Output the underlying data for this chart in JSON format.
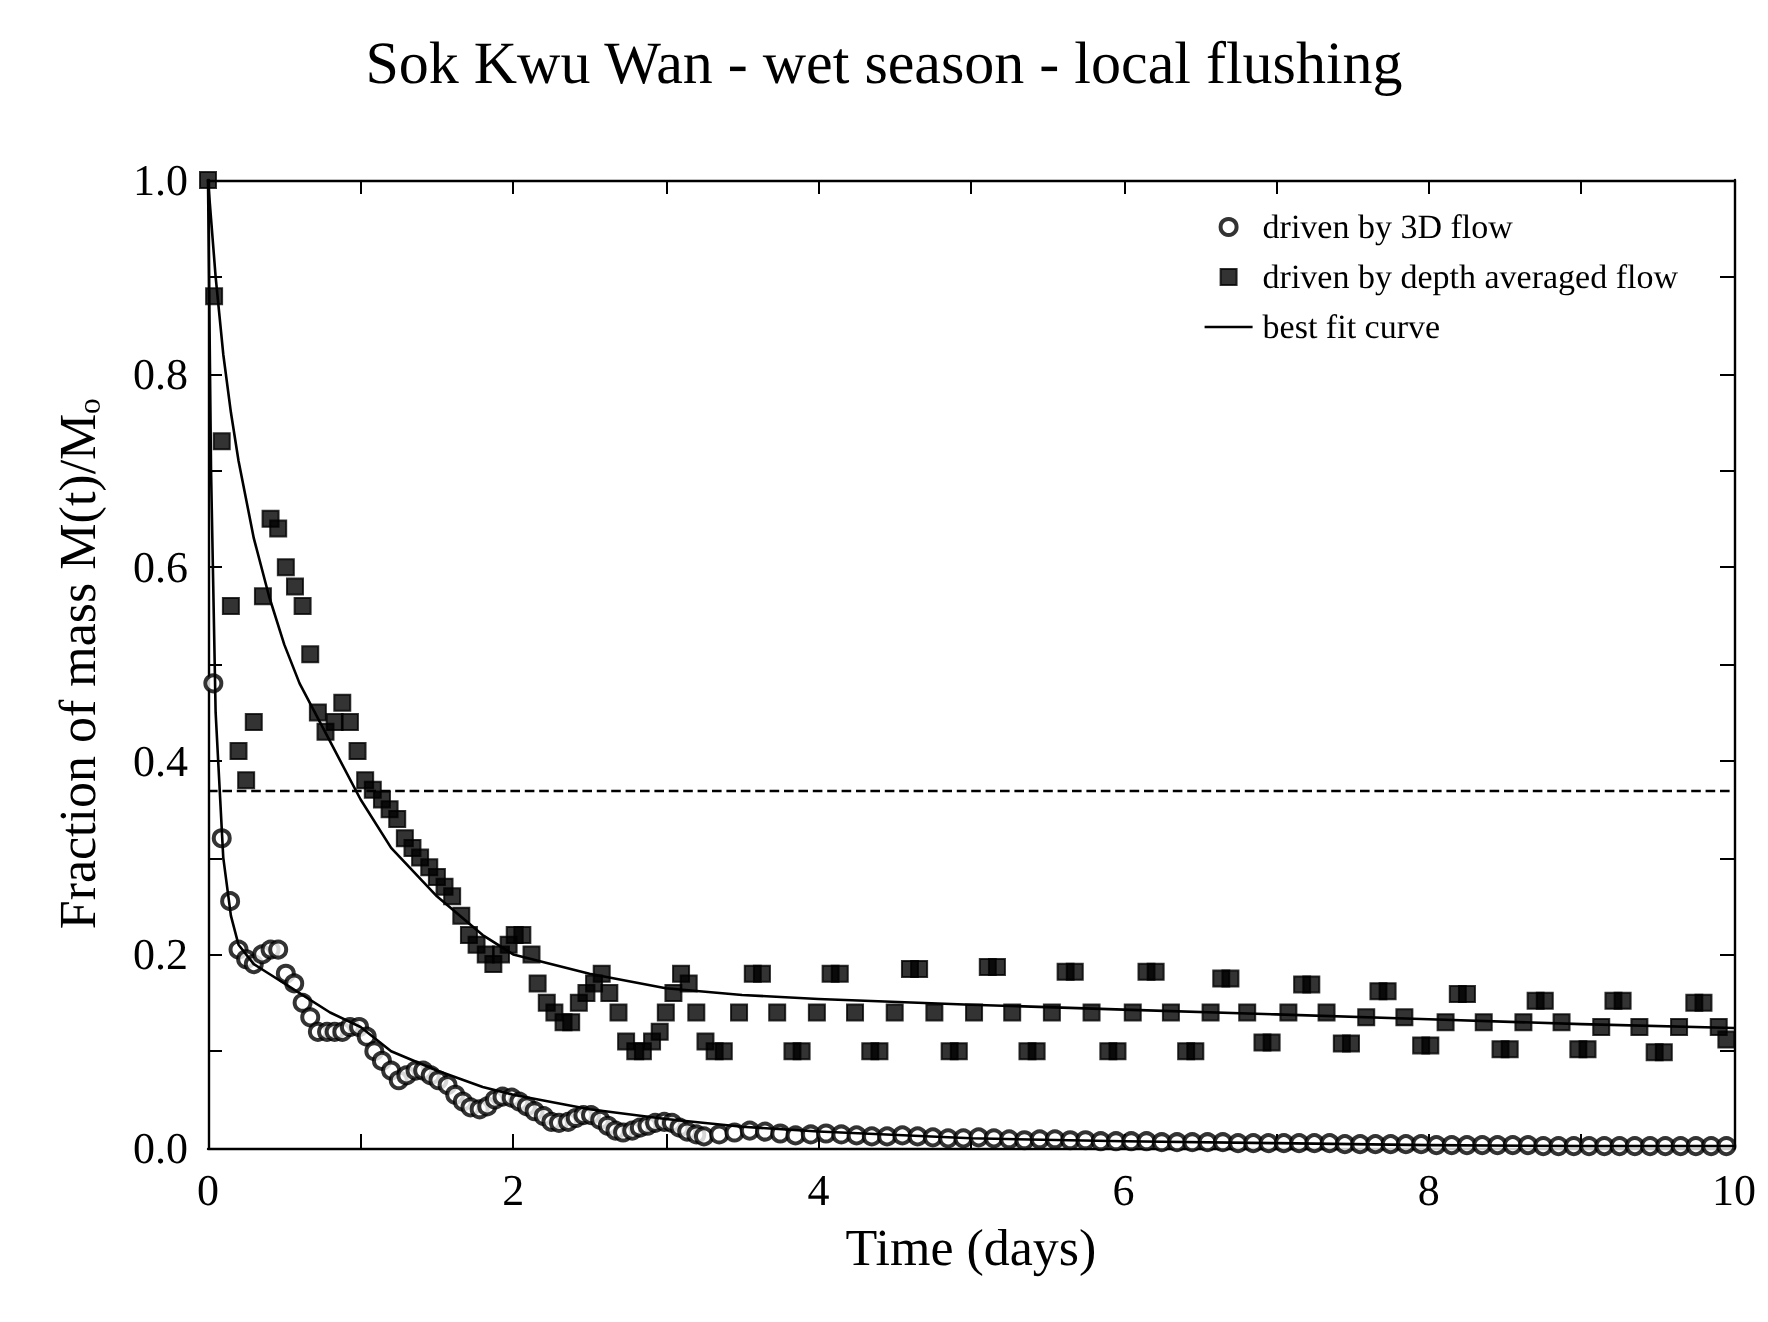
{
  "chart_data": {
    "type": "scatter",
    "title": "Sok Kwu Wan - wet season - local flushing",
    "xlabel": "Time (days)",
    "ylabel": "Fraction of mass M(t)/Mₒ",
    "xlim": [
      0,
      10
    ],
    "xticks": [
      0,
      {
        "value": 1,
        "label": null
      },
      2,
      {
        "value": 3,
        "label": null
      },
      4,
      {
        "value": 5,
        "label": null
      },
      6,
      {
        "value": 7,
        "label": null
      },
      8,
      {
        "value": 9,
        "label": null
      },
      10
    ],
    "ylim": [
      0,
      1
    ],
    "yticks": [
      {
        "value": 0,
        "label": "0.0"
      },
      {
        "value": 0.1,
        "label": null
      },
      {
        "value": 0.2,
        "label": "0.2"
      },
      {
        "value": 0.3,
        "label": null
      },
      {
        "value": 0.4,
        "label": "0.4"
      },
      {
        "value": 0.5,
        "label": null
      },
      {
        "value": 0.6,
        "label": "0.6"
      },
      {
        "value": 0.7,
        "label": null
      },
      {
        "value": 0.8,
        "label": "0.8"
      },
      {
        "value": 0.9,
        "label": null
      },
      {
        "value": 1,
        "label": "1.0"
      }
    ],
    "grid": false,
    "legend": "top right",
    "ref_lines": [
      {
        "axis": "y",
        "value": 0.368,
        "line_style": "dashed",
        "color": "#000000"
      }
    ],
    "series": [
      {
        "name": "driven by 3D flow",
        "marker": "circle",
        "color": "#000000",
        "x": [
          0.035,
          0.09,
          0.145,
          0.2,
          0.25,
          0.3,
          0.355,
          0.41,
          0.46,
          0.51,
          0.565,
          0.62,
          0.67,
          0.72,
          0.78,
          0.83,
          0.88,
          0.93,
          0.99,
          1.04,
          1.09,
          1.14,
          1.2,
          1.25,
          1.3,
          1.36,
          1.41,
          1.46,
          1.51,
          1.57,
          1.62,
          1.67,
          1.72,
          1.78,
          1.83,
          1.88,
          1.93,
          1.99,
          2.04,
          2.09,
          2.14,
          2.2,
          2.25,
          2.3,
          2.36,
          2.41,
          2.46,
          2.51,
          2.57,
          2.62,
          2.67,
          2.72,
          2.78,
          2.83,
          2.88,
          2.93,
          2.99,
          3.04,
          3.09,
          3.14,
          3.2,
          3.25,
          3.35,
          3.45,
          3.55,
          3.65,
          3.75,
          3.85,
          3.95,
          4.05,
          4.15,
          4.25,
          4.35,
          4.45,
          4.55,
          4.65,
          4.75,
          4.85,
          4.95,
          5.05,
          5.15,
          5.25,
          5.35,
          5.45,
          5.55,
          5.65,
          5.75,
          5.85,
          5.95,
          6.05,
          6.15,
          6.25,
          6.35,
          6.45,
          6.55,
          6.65,
          6.75,
          6.85,
          6.95,
          7.05,
          7.15,
          7.25,
          7.35,
          7.45,
          7.55,
          7.65,
          7.75,
          7.85,
          7.95,
          8.05,
          8.15,
          8.25,
          8.35,
          8.45,
          8.55,
          8.65,
          8.75,
          8.85,
          8.95,
          9.05,
          9.15,
          9.25,
          9.35,
          9.45,
          9.55,
          9.65,
          9.75,
          9.85,
          9.95
        ],
        "values": [
          0.48,
          0.32,
          0.255,
          0.205,
          0.195,
          0.19,
          0.2,
          0.205,
          0.205,
          0.18,
          0.17,
          0.15,
          0.135,
          0.12,
          0.12,
          0.12,
          0.12,
          0.125,
          0.125,
          0.115,
          0.1,
          0.09,
          0.08,
          0.07,
          0.075,
          0.08,
          0.08,
          0.075,
          0.07,
          0.065,
          0.055,
          0.048,
          0.042,
          0.04,
          0.043,
          0.05,
          0.053,
          0.052,
          0.048,
          0.043,
          0.038,
          0.033,
          0.027,
          0.026,
          0.027,
          0.031,
          0.034,
          0.034,
          0.029,
          0.023,
          0.018,
          0.016,
          0.018,
          0.021,
          0.023,
          0.026,
          0.027,
          0.026,
          0.021,
          0.017,
          0.014,
          0.012,
          0.014,
          0.016,
          0.018,
          0.017,
          0.015,
          0.013,
          0.014,
          0.015,
          0.014,
          0.013,
          0.012,
          0.012,
          0.013,
          0.012,
          0.011,
          0.01,
          0.01,
          0.011,
          0.01,
          0.009,
          0.008,
          0.009,
          0.009,
          0.008,
          0.008,
          0.007,
          0.007,
          0.007,
          0.007,
          0.006,
          0.006,
          0.006,
          0.006,
          0.006,
          0.005,
          0.005,
          0.005,
          0.005,
          0.005,
          0.005,
          0.005,
          0.004,
          0.004,
          0.004,
          0.004,
          0.004,
          0.004,
          0.003,
          0.003,
          0.003,
          0.003,
          0.003,
          0.003,
          0.003,
          0.002,
          0.002,
          0.002,
          0.002,
          0.002,
          0.002,
          0.002,
          0.002,
          0.002,
          0.002,
          0.002,
          0.002,
          0.002
        ]
      },
      {
        "name": "driven by depth averaged flow",
        "marker": "square",
        "color": "#000000",
        "x": [
          0,
          0.04,
          0.09,
          0.15,
          0.2,
          0.25,
          0.3,
          0.36,
          0.41,
          0.46,
          0.51,
          0.57,
          0.62,
          0.67,
          0.72,
          0.77,
          0.83,
          0.88,
          0.93,
          0.98,
          1.03,
          1.08,
          1.14,
          1.19,
          1.24,
          1.29,
          1.34,
          1.39,
          1.45,
          1.5,
          1.55,
          1.6,
          1.66,
          1.71,
          1.76,
          1.82,
          1.87,
          1.92,
          1.97,
          2.01,
          2.06,
          2.12,
          2.16,
          2.22,
          2.27,
          2.33,
          2.38,
          2.43,
          2.48,
          2.53,
          2.58,
          2.63,
          2.69,
          2.74,
          2.8,
          2.85,
          2.91,
          2.96,
          3.0,
          3.05,
          3.1,
          3.15,
          3.2,
          3.26,
          3.32,
          3.38,
          3.48,
          3.57,
          3.63,
          3.73,
          3.83,
          3.89,
          3.99,
          4.08,
          4.14,
          4.24,
          4.34,
          4.4,
          4.5,
          4.6,
          4.66,
          4.76,
          4.86,
          4.92,
          5.02,
          5.11,
          5.17,
          5.27,
          5.37,
          5.43,
          5.53,
          5.62,
          5.68,
          5.79,
          5.9,
          5.96,
          6.06,
          6.15,
          6.21,
          6.31,
          6.41,
          6.47,
          6.57,
          6.64,
          6.7,
          6.81,
          6.91,
          6.97,
          7.08,
          7.17,
          7.23,
          7.33,
          7.43,
          7.49,
          7.59,
          7.67,
          7.73,
          7.84,
          7.95,
          8.01,
          8.11,
          8.19,
          8.25,
          8.36,
          8.47,
          8.53,
          8.62,
          8.7,
          8.76,
          8.87,
          8.98,
          9.04,
          9.13,
          9.21,
          9.27,
          9.38,
          9.48,
          9.54,
          9.64,
          9.74,
          9.8,
          9.9,
          9.95
        ],
        "values": [
          1.0,
          0.88,
          0.73,
          0.56,
          0.41,
          0.38,
          0.44,
          0.57,
          0.65,
          0.64,
          0.6,
          0.58,
          0.56,
          0.51,
          0.45,
          0.43,
          0.44,
          0.46,
          0.44,
          0.41,
          0.38,
          0.37,
          0.36,
          0.35,
          0.34,
          0.32,
          0.31,
          0.3,
          0.29,
          0.28,
          0.27,
          0.26,
          0.24,
          0.22,
          0.21,
          0.2,
          0.19,
          0.2,
          0.21,
          0.22,
          0.22,
          0.2,
          0.17,
          0.15,
          0.14,
          0.13,
          0.13,
          0.15,
          0.16,
          0.17,
          0.18,
          0.16,
          0.14,
          0.11,
          0.1,
          0.1,
          0.11,
          0.12,
          0.14,
          0.16,
          0.18,
          0.17,
          0.14,
          0.11,
          0.1,
          0.1,
          0.14,
          0.18,
          0.18,
          0.14,
          0.1,
          0.1,
          0.14,
          0.18,
          0.18,
          0.14,
          0.1,
          0.1,
          0.14,
          0.185,
          0.185,
          0.14,
          0.1,
          0.1,
          0.14,
          0.187,
          0.187,
          0.14,
          0.1,
          0.1,
          0.14,
          0.182,
          0.182,
          0.14,
          0.1,
          0.1,
          0.14,
          0.182,
          0.182,
          0.14,
          0.1,
          0.1,
          0.14,
          0.175,
          0.175,
          0.14,
          0.109,
          0.109,
          0.14,
          0.169,
          0.169,
          0.14,
          0.108,
          0.108,
          0.135,
          0.162,
          0.162,
          0.135,
          0.106,
          0.106,
          0.13,
          0.159,
          0.159,
          0.13,
          0.102,
          0.102,
          0.13,
          0.152,
          0.152,
          0.13,
          0.102,
          0.102,
          0.125,
          0.152,
          0.152,
          0.125,
          0.099,
          0.099,
          0.125,
          0.15,
          0.15,
          0.125,
          0.112
        ]
      },
      {
        "name": "best fit curve",
        "type": "line",
        "marker": "none",
        "color": "#000000",
        "x": [
          0,
          0.05,
          0.1,
          0.15,
          0.2,
          0.3,
          0.4,
          0.5,
          0.6,
          0.8,
          1,
          1.2,
          1.5,
          1.8,
          2,
          2.5,
          3,
          3.5,
          4,
          5,
          6,
          7,
          8,
          9,
          10
        ],
        "values": [
          1.0,
          0.9,
          0.82,
          0.76,
          0.71,
          0.63,
          0.57,
          0.52,
          0.48,
          0.42,
          0.36,
          0.31,
          0.26,
          0.22,
          0.2,
          0.18,
          0.165,
          0.158,
          0.154,
          0.148,
          0.143,
          0.138,
          0.133,
          0.128,
          0.124
        ]
      },
      {
        "type": "line",
        "marker": "none",
        "color": "#000000",
        "x": [
          0,
          0.02,
          0.05,
          0.1,
          0.15,
          0.2,
          0.3,
          0.4,
          0.5,
          0.6,
          0.8,
          1,
          1.2,
          1.5,
          1.8,
          2,
          2.5,
          3,
          3.5,
          4,
          5,
          6,
          7,
          8,
          9,
          10
        ],
        "values": [
          1.0,
          0.7,
          0.45,
          0.3,
          0.24,
          0.21,
          0.19,
          0.18,
          0.17,
          0.16,
          0.14,
          0.125,
          0.1,
          0.08,
          0.063,
          0.055,
          0.04,
          0.03,
          0.022,
          0.017,
          0.01,
          0.007,
          0.005,
          0.003,
          0.002,
          0.002
        ]
      }
    ]
  }
}
